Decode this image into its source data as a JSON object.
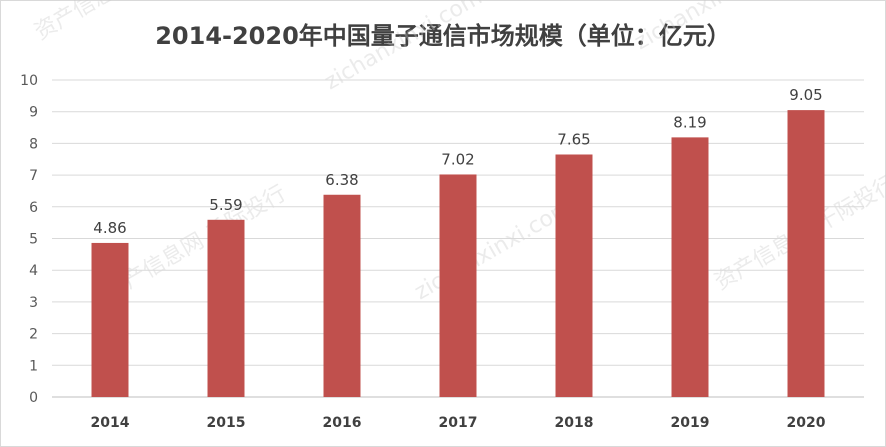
{
  "chart_data": {
    "type": "bar",
    "title": "2014-2020年中国量子通信市场规模（单位：亿元）",
    "categories": [
      "2014",
      "2015",
      "2016",
      "2017",
      "2018",
      "2019",
      "2020"
    ],
    "values": [
      4.86,
      5.59,
      6.38,
      7.02,
      7.65,
      8.19,
      9.05
    ],
    "data_labels": [
      "4.86",
      "5.59",
      "6.38",
      "7.02",
      "7.65",
      "8.19",
      "9.05"
    ],
    "y_ticks": [
      "0",
      "1",
      "2",
      "3",
      "4",
      "5",
      "6",
      "7",
      "8",
      "9",
      "10"
    ],
    "ylim": [
      0,
      10
    ],
    "grid": true,
    "legend": "none",
    "bar_color": "#c0504d",
    "xlabel": "",
    "ylabel": ""
  },
  "watermark": {
    "lines": [
      "资产信息网 千际投行",
      "zichanxinxi.com"
    ]
  }
}
